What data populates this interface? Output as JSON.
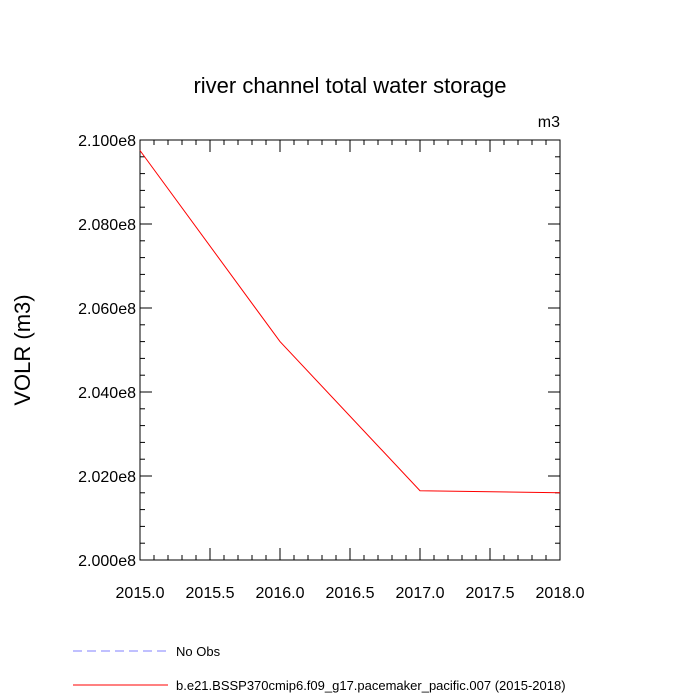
{
  "chart_data": {
    "type": "line",
    "title": "river channel total water storage",
    "units_label": "m3",
    "xlabel": "",
    "ylabel": "VOLR  (m3)",
    "xlim": [
      2015.0,
      2018.0
    ],
    "ylim": [
      200000000,
      210000000
    ],
    "x_ticks": [
      {
        "value": 2015.0,
        "label": "2015.0"
      },
      {
        "value": 2015.5,
        "label": "2015.5"
      },
      {
        "value": 2016.0,
        "label": "2016.0"
      },
      {
        "value": 2016.5,
        "label": "2016.5"
      },
      {
        "value": 2017.0,
        "label": "2017.0"
      },
      {
        "value": 2017.5,
        "label": "2017.5"
      },
      {
        "value": 2018.0,
        "label": "2018.0"
      }
    ],
    "y_ticks": [
      {
        "value": 200000000,
        "label": "2.000e8"
      },
      {
        "value": 202000000,
        "label": "2.020e8"
      },
      {
        "value": 204000000,
        "label": "2.040e8"
      },
      {
        "value": 206000000,
        "label": "2.060e8"
      },
      {
        "value": 208000000,
        "label": "2.080e8"
      },
      {
        "value": 210000000,
        "label": "2.100e8"
      }
    ],
    "series": [
      {
        "name": "b.e21.BSSP370cmip6.f09_g17.pacemaker_pacific.007 (2015-2018)",
        "color": "#ff0000",
        "dash": "solid",
        "x": [
          2015.0,
          2016.0,
          2017.0,
          2018.0
        ],
        "values": [
          209750000,
          205200000,
          201650000,
          201600000
        ]
      }
    ],
    "legend": [
      {
        "label": "No Obs",
        "color": "#8080ff",
        "dash": "dashed"
      },
      {
        "label": "b.e21.BSSP370cmip6.f09_g17.pacemaker_pacific.007 (2015-2018)",
        "color": "#ff0000",
        "dash": "solid"
      }
    ],
    "grid": false,
    "legend_position": "bottom-left"
  }
}
